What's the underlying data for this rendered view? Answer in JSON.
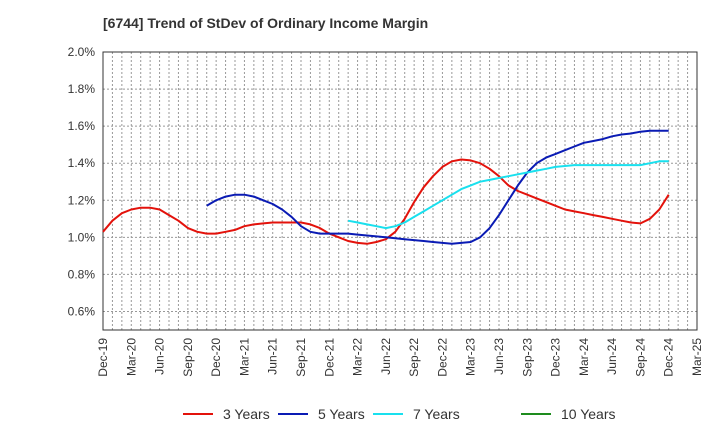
{
  "chart_data": {
    "type": "line",
    "title": "[6744]  Trend of StDev of Ordinary Income Margin",
    "xlabel": "",
    "ylabel": "",
    "x_ticks": [
      "Dec-19",
      "Mar-20",
      "Jun-20",
      "Sep-20",
      "Dec-20",
      "Mar-21",
      "Jun-21",
      "Sep-21",
      "Dec-21",
      "Mar-22",
      "Jun-22",
      "Sep-22",
      "Dec-22",
      "Mar-23",
      "Jun-23",
      "Sep-23",
      "Dec-23",
      "Mar-24",
      "Jun-24",
      "Sep-24",
      "Dec-24",
      "Mar-25"
    ],
    "y_ticks": [
      "0.6%",
      "0.8%",
      "1.0%",
      "1.2%",
      "1.4%",
      "1.6%",
      "1.8%",
      "2.0%"
    ],
    "ylim": [
      0.5,
      2.0
    ],
    "grid": true,
    "legend_position": "bottom",
    "series": [
      {
        "name": "3 Years",
        "color": "#e3120b",
        "x": [
          "2019-12",
          "2020-01",
          "2020-02",
          "2020-03",
          "2020-04",
          "2020-05",
          "2020-06",
          "2020-07",
          "2020-08",
          "2020-09",
          "2020-10",
          "2020-11",
          "2020-12",
          "2021-01",
          "2021-02",
          "2021-03",
          "2021-04",
          "2021-05",
          "2021-06",
          "2021-07",
          "2021-08",
          "2021-09",
          "2021-10",
          "2021-11",
          "2021-12",
          "2022-01",
          "2022-02",
          "2022-03",
          "2022-04",
          "2022-05",
          "2022-06",
          "2022-07",
          "2022-08",
          "2022-09",
          "2022-10",
          "2022-11",
          "2022-12",
          "2023-01",
          "2023-02",
          "2023-03",
          "2023-04",
          "2023-05",
          "2023-06",
          "2023-07",
          "2023-08",
          "2023-09",
          "2023-10",
          "2023-11",
          "2023-12",
          "2024-01",
          "2024-02",
          "2024-03",
          "2024-04",
          "2024-05",
          "2024-06",
          "2024-07",
          "2024-08",
          "2024-09",
          "2024-10",
          "2024-11",
          "2024-12"
        ],
        "values": [
          1.03,
          1.09,
          1.13,
          1.15,
          1.16,
          1.16,
          1.15,
          1.12,
          1.09,
          1.05,
          1.03,
          1.02,
          1.02,
          1.03,
          1.04,
          1.06,
          1.07,
          1.075,
          1.08,
          1.08,
          1.08,
          1.08,
          1.07,
          1.05,
          1.02,
          1.0,
          0.98,
          0.97,
          0.965,
          0.975,
          0.99,
          1.03,
          1.1,
          1.19,
          1.27,
          1.33,
          1.38,
          1.41,
          1.42,
          1.415,
          1.4,
          1.37,
          1.33,
          1.28,
          1.25,
          1.23,
          1.21,
          1.19,
          1.17,
          1.15,
          1.14,
          1.13,
          1.12,
          1.11,
          1.1,
          1.09,
          1.08,
          1.075,
          1.1,
          1.15,
          1.23
        ]
      },
      {
        "name": "5 Years",
        "color": "#0a1bb4",
        "x": [
          "2020-11",
          "2020-12",
          "2021-01",
          "2021-02",
          "2021-03",
          "2021-04",
          "2021-05",
          "2021-06",
          "2021-07",
          "2021-08",
          "2021-09",
          "2021-10",
          "2021-11",
          "2021-12",
          "2022-01",
          "2022-02",
          "2022-03",
          "2022-04",
          "2022-05",
          "2022-06",
          "2022-07",
          "2022-08",
          "2022-09",
          "2022-10",
          "2022-11",
          "2022-12",
          "2023-01",
          "2023-02",
          "2023-03",
          "2023-04",
          "2023-05",
          "2023-06",
          "2023-07",
          "2023-08",
          "2023-09",
          "2023-10",
          "2023-11",
          "2023-12",
          "2024-01",
          "2024-02",
          "2024-03",
          "2024-04",
          "2024-05",
          "2024-06",
          "2024-07",
          "2024-08",
          "2024-09",
          "2024-10",
          "2024-11",
          "2024-12"
        ],
        "values": [
          1.17,
          1.2,
          1.22,
          1.23,
          1.23,
          1.22,
          1.2,
          1.18,
          1.15,
          1.11,
          1.06,
          1.03,
          1.02,
          1.02,
          1.02,
          1.02,
          1.015,
          1.01,
          1.005,
          1.0,
          0.995,
          0.99,
          0.985,
          0.98,
          0.975,
          0.97,
          0.965,
          0.97,
          0.975,
          1.0,
          1.05,
          1.12,
          1.2,
          1.28,
          1.35,
          1.4,
          1.43,
          1.45,
          1.47,
          1.49,
          1.51,
          1.52,
          1.53,
          1.545,
          1.555,
          1.56,
          1.57,
          1.575,
          1.575,
          1.575
        ]
      },
      {
        "name": "7 Years",
        "color": "#19e0ee",
        "x": [
          "2022-02",
          "2022-03",
          "2022-04",
          "2022-05",
          "2022-06",
          "2022-07",
          "2022-08",
          "2022-09",
          "2022-10",
          "2022-11",
          "2022-12",
          "2023-01",
          "2023-02",
          "2023-03",
          "2023-04",
          "2023-05",
          "2023-06",
          "2023-07",
          "2023-08",
          "2023-09",
          "2023-10",
          "2023-11",
          "2023-12",
          "2024-01",
          "2024-02",
          "2024-03",
          "2024-04",
          "2024-05",
          "2024-06",
          "2024-07",
          "2024-08",
          "2024-09",
          "2024-10",
          "2024-11",
          "2024-12"
        ],
        "values": [
          1.09,
          1.08,
          1.07,
          1.06,
          1.05,
          1.06,
          1.08,
          1.11,
          1.14,
          1.17,
          1.2,
          1.23,
          1.26,
          1.28,
          1.3,
          1.31,
          1.32,
          1.33,
          1.34,
          1.35,
          1.36,
          1.37,
          1.38,
          1.385,
          1.39,
          1.39,
          1.39,
          1.39,
          1.39,
          1.39,
          1.39,
          1.39,
          1.4,
          1.41,
          1.41
        ]
      },
      {
        "name": "10 Years",
        "color": "#1e8c1e",
        "x": [],
        "values": []
      }
    ]
  }
}
